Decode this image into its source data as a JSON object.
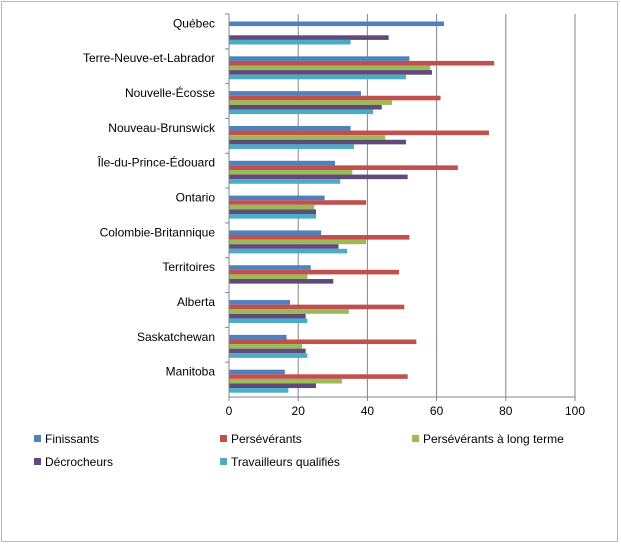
{
  "chart_data": {
    "type": "bar",
    "orientation": "horizontal",
    "title": "",
    "xlabel": "",
    "ylabel": "",
    "xlim": [
      0,
      100
    ],
    "xticks": [
      0,
      20,
      40,
      60,
      80,
      100
    ],
    "grid": "vertical",
    "legend_position": "bottom",
    "categories": [
      "Québec",
      "Terre-Neuve-et-Labrador",
      "Nouvelle-Écosse",
      "Nouveau-Brunswick",
      "Île-du-Prince-Édouard",
      "Ontario",
      "Colombie-Britannique",
      "Territoires",
      "Alberta",
      "Saskatchewan",
      "Manitoba"
    ],
    "series": [
      {
        "name": "Finissants",
        "color": "#4f81bd",
        "values": [
          62,
          52,
          38,
          35,
          30.5,
          27.5,
          26.5,
          23.5,
          17.5,
          16.5,
          16
        ]
      },
      {
        "name": "Persévérants",
        "color": "#c0504d",
        "values": [
          null,
          76.5,
          61,
          75,
          66,
          39.5,
          52,
          49,
          50.5,
          54,
          51.5
        ]
      },
      {
        "name": "Persévérants à long terme",
        "color": "#9bbb59",
        "values": [
          null,
          58,
          47,
          45,
          35.5,
          24.5,
          39.5,
          22.5,
          34.5,
          21,
          32.5
        ]
      },
      {
        "name": "Décrocheurs",
        "color": "#604a7b",
        "values": [
          46,
          58.5,
          44,
          51,
          51.5,
          25,
          31.5,
          30,
          22,
          22,
          25
        ]
      },
      {
        "name": "Travailleurs qualifiés",
        "color": "#4bacc6",
        "values": [
          35,
          51,
          41.5,
          36,
          32,
          25,
          34,
          0,
          22.5,
          22.5,
          17
        ]
      }
    ]
  }
}
